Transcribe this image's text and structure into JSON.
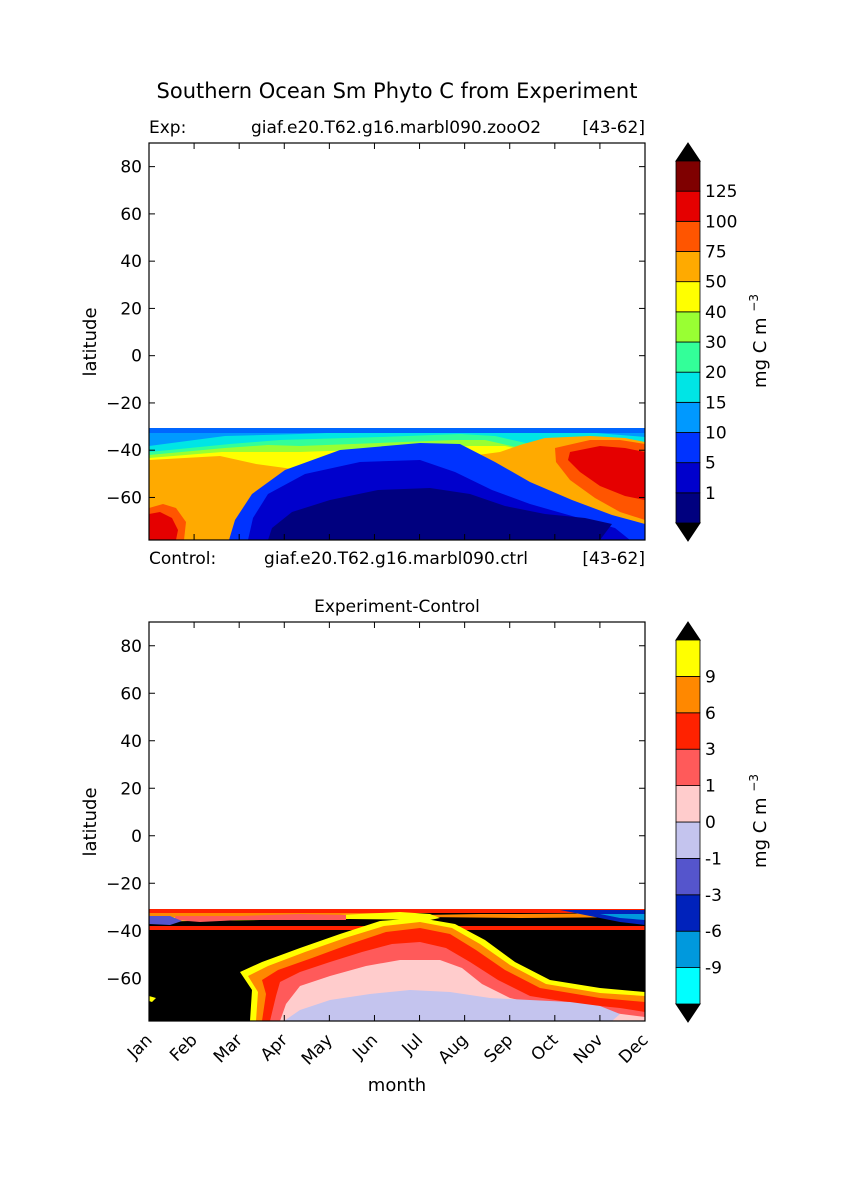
{
  "figure": {
    "title": "Southern Ocean Sm Phyto C from Experiment",
    "exp_prefix": "Exp:",
    "exp_case": "giaf.e20.T62.g16.marbl090.zooO2",
    "exp_years": "[43-62]",
    "ctrl_prefix": "Control:",
    "ctrl_case": "giaf.e20.T62.g16.marbl090.ctrl",
    "ctrl_years": "[43-62]",
    "diff_title": "Experiment-Control"
  },
  "chart_data": [
    {
      "type": "heatmap",
      "name": "experiment",
      "title": "",
      "xlabel": "",
      "ylabel": "latitude",
      "ylim": [
        -78,
        90
      ],
      "yticks": [
        80,
        60,
        40,
        20,
        0,
        -20,
        -40,
        -60
      ],
      "ytick_labels": [
        "80",
        "60",
        "40",
        "20",
        "0",
        "−20",
        "−40",
        "−60"
      ],
      "x_categories": [
        "Jan",
        "Feb",
        "Mar",
        "Apr",
        "May",
        "Jun",
        "Jul",
        "Aug",
        "Sep",
        "Oct",
        "Nov",
        "Dec"
      ],
      "data_lat_max": -32,
      "grid": false,
      "colorbar": {
        "label": "mg C m",
        "label_exp": "−3",
        "extend": "both",
        "levels": [
          "1",
          "5",
          "10",
          "15",
          "20",
          "30",
          "40",
          "50",
          "75",
          "100",
          "125"
        ],
        "colors": [
          "#00007f",
          "#0000cc",
          "#0033ff",
          "#0099ff",
          "#00e5e5",
          "#33ff99",
          "#99ff33",
          "#ffff00",
          "#ffaa00",
          "#ff5500",
          "#e50000",
          "#7f0000"
        ],
        "under_color": "#00007f",
        "over_color": "#000000"
      }
    },
    {
      "type": "heatmap",
      "name": "difference",
      "title": "Experiment-Control",
      "xlabel": "month",
      "ylabel": "latitude",
      "ylim": [
        -78,
        90
      ],
      "yticks": [
        80,
        60,
        40,
        20,
        0,
        -20,
        -40,
        -60
      ],
      "ytick_labels": [
        "80",
        "60",
        "40",
        "20",
        "0",
        "−20",
        "−40",
        "−60"
      ],
      "x_categories": [
        "Jan",
        "Feb",
        "Mar",
        "Apr",
        "May",
        "Jun",
        "Jul",
        "Aug",
        "Sep",
        "Oct",
        "Nov",
        "Dec"
      ],
      "data_lat_max": -32,
      "grid": false,
      "colorbar": {
        "label": "mg C m",
        "label_exp": "−3",
        "extend": "both",
        "levels": [
          "-9",
          "-6",
          "-3",
          "-1",
          "0",
          "1",
          "3",
          "6",
          "9"
        ],
        "colors": [
          "#00ffff",
          "#0099dd",
          "#0022bb",
          "#5555cc",
          "#c4c4ee",
          "#ffcccc",
          "#ff5a5a",
          "#ff2200",
          "#ff8800",
          "#ffff00"
        ],
        "under_color": "#000000",
        "over_color": "#000000"
      }
    }
  ]
}
